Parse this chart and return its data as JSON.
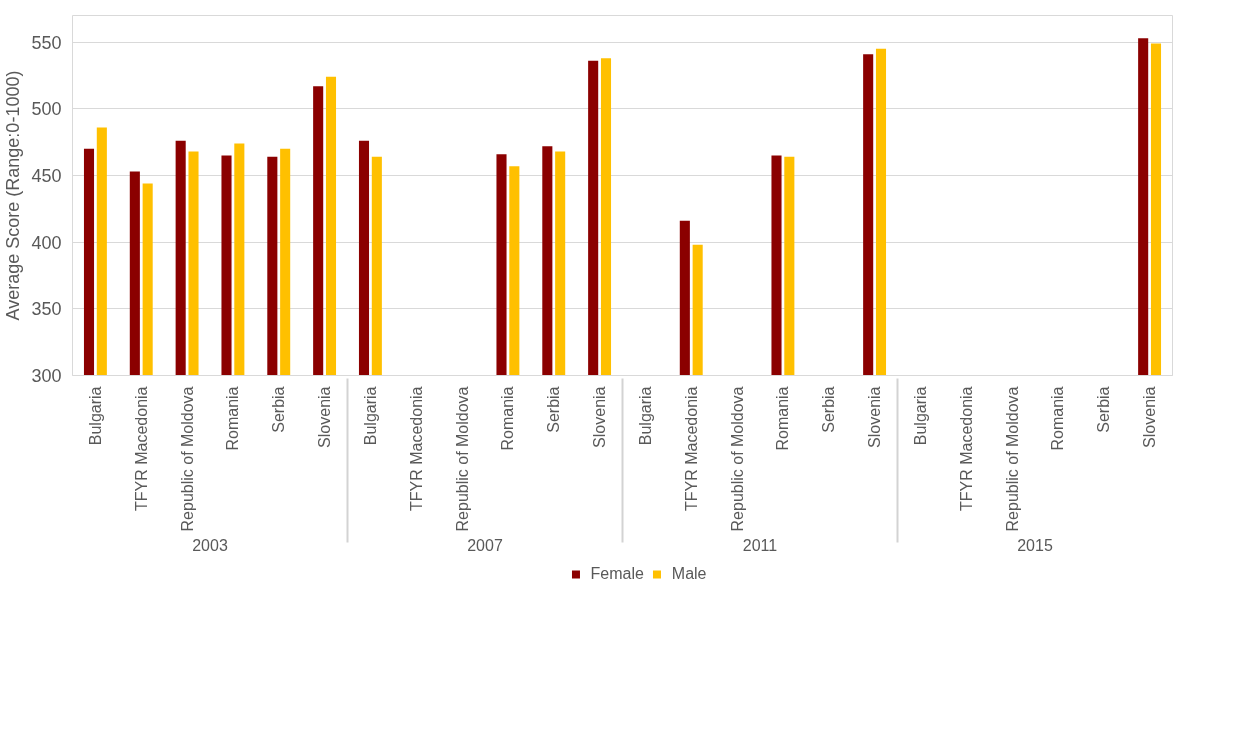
{
  "chart_data": {
    "type": "bar",
    "ylabel": "Average Score (Range:0-1000)",
    "categories": [
      "Bulgaria",
      "TFYR Macedonia",
      "Republic of Moldova",
      "Romania",
      "Serbia",
      "Slovenia",
      "Bulgaria",
      "TFYR Macedonia",
      "Republic of Moldova",
      "Romania",
      "Serbia",
      "Slovenia",
      "Bulgaria",
      "TFYR Macedonia",
      "Republic of Moldova",
      "Romania",
      "Serbia",
      "Slovenia",
      "Bulgaria",
      "TFYR Macedonia",
      "Republic of Moldova",
      "Romania",
      "Serbia",
      "Slovenia"
    ],
    "annotations": [
      "2003",
      "2007",
      "2011",
      "2015"
    ],
    "series": [
      {
        "name": "Female",
        "color": "#8b0000",
        "values": [
          470,
          453,
          476,
          465,
          464,
          517,
          476,
          null,
          null,
          466,
          472,
          536,
          null,
          416,
          null,
          465,
          null,
          541,
          null,
          null,
          null,
          null,
          null,
          553
        ]
      },
      {
        "name": "Male",
        "color": "#ffc000",
        "values": [
          486,
          444,
          468,
          474,
          470,
          524,
          464,
          null,
          null,
          457,
          468,
          538,
          null,
          398,
          null,
          464,
          null,
          545,
          null,
          null,
          null,
          null,
          null,
          549
        ]
      }
    ],
    "ylim": [
      300,
      570
    ],
    "yticks": [
      300,
      350,
      400,
      450,
      500,
      550
    ],
    "grid": "y",
    "legend": "bottom"
  }
}
